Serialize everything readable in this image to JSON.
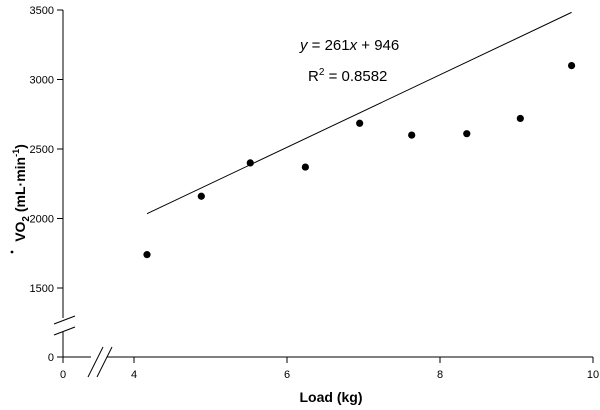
{
  "chart_data": {
    "type": "scatter",
    "title": "",
    "xlabel": "Load (kg)",
    "ylabel_parts": {
      "main": "VO",
      "sub": "2",
      "unit": " (mL·min",
      "sup": "-1",
      "close": ")"
    },
    "x_ticks": [
      {
        "value": 0,
        "label": "0"
      },
      {
        "value": 4,
        "label": "4"
      },
      {
        "value": 6,
        "label": "6"
      },
      {
        "value": 8,
        "label": "8"
      },
      {
        "value": 10,
        "label": "10"
      }
    ],
    "y_ticks": [
      {
        "value": 0,
        "label": "0"
      },
      {
        "value": 1500,
        "label": "1500"
      },
      {
        "value": 2000,
        "label": "2000"
      },
      {
        "value": 2500,
        "label": "2500"
      },
      {
        "value": 3000,
        "label": "3000"
      },
      {
        "value": 3500,
        "label": "3500"
      }
    ],
    "points": [
      {
        "x": 4.17,
        "y": 1740
      },
      {
        "x": 4.88,
        "y": 2160
      },
      {
        "x": 5.52,
        "y": 2400
      },
      {
        "x": 6.24,
        "y": 2370
      },
      {
        "x": 6.95,
        "y": 2685
      },
      {
        "x": 7.63,
        "y": 2600
      },
      {
        "x": 8.35,
        "y": 2610
      },
      {
        "x": 9.05,
        "y": 2720
      },
      {
        "x": 9.72,
        "y": 3100
      }
    ],
    "trendline": {
      "slope": 261,
      "intercept": 946,
      "x_start": 4.17,
      "x_end": 9.72
    },
    "equation": {
      "y": "y",
      "rest1": " = 261",
      "x": "x",
      "rest2": " + 946"
    },
    "r2": {
      "R": "R",
      "sup": "2",
      "rest": " = 0.8582"
    },
    "y_axis_break": true,
    "x_axis_break": true,
    "grid": false,
    "marker_color": "#000000",
    "line_color": "#000000"
  }
}
